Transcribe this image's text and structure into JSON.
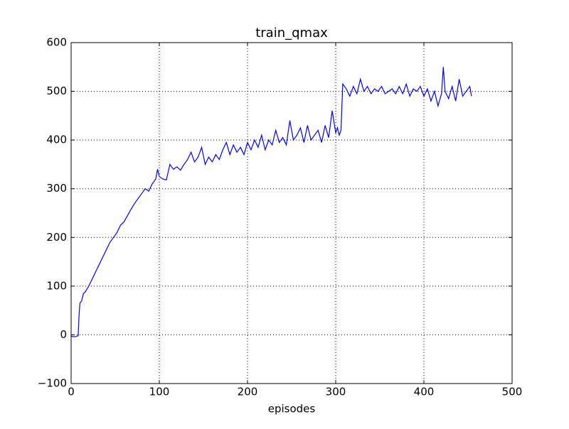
{
  "chart_data": {
    "type": "line",
    "title": "train_qmax",
    "xlabel": "episodes",
    "x": [
      0,
      4,
      8,
      9,
      10,
      12,
      14,
      16,
      20,
      24,
      28,
      32,
      36,
      40,
      44,
      48,
      52,
      56,
      60,
      64,
      68,
      72,
      76,
      80,
      84,
      88,
      92,
      96,
      98,
      100,
      104,
      108,
      112,
      116,
      120,
      124,
      128,
      132,
      136,
      140,
      144,
      148,
      152,
      156,
      160,
      164,
      168,
      172,
      176,
      180,
      184,
      188,
      192,
      196,
      200,
      204,
      208,
      212,
      216,
      220,
      224,
      228,
      232,
      236,
      240,
      244,
      248,
      252,
      256,
      260,
      264,
      268,
      272,
      276,
      280,
      284,
      288,
      292,
      296,
      300,
      302,
      304,
      306,
      308,
      312,
      316,
      320,
      324,
      328,
      332,
      336,
      340,
      344,
      348,
      352,
      356,
      360,
      364,
      368,
      372,
      376,
      380,
      384,
      388,
      392,
      396,
      400,
      404,
      408,
      412,
      416,
      420,
      422,
      424,
      428,
      432,
      436,
      440,
      444,
      448,
      452,
      454
    ],
    "series": [
      {
        "name": "train_qmax",
        "color": "#0000ff",
        "values": [
          -3,
          -4,
          -2,
          40,
          65,
          70,
          85,
          88,
          100,
          115,
          130,
          145,
          160,
          175,
          190,
          200,
          210,
          225,
          232,
          245,
          258,
          270,
          280,
          290,
          300,
          295,
          310,
          320,
          340,
          325,
          320,
          318,
          350,
          340,
          345,
          338,
          350,
          360,
          375,
          355,
          365,
          385,
          350,
          365,
          355,
          370,
          360,
          380,
          395,
          370,
          390,
          375,
          385,
          370,
          395,
          380,
          400,
          385,
          410,
          380,
          400,
          390,
          420,
          395,
          405,
          390,
          440,
          400,
          410,
          425,
          395,
          430,
          400,
          410,
          420,
          395,
          430,
          405,
          460,
          415,
          425,
          410,
          420,
          515,
          505,
          490,
          510,
          495,
          525,
          500,
          510,
          495,
          505,
          500,
          510,
          495,
          500,
          505,
          495,
          510,
          495,
          515,
          490,
          505,
          500,
          510,
          490,
          505,
          480,
          500,
          470,
          495,
          550,
          500,
          485,
          510,
          480,
          525,
          490,
          500,
          510,
          490
        ]
      }
    ],
    "xlim": [
      0,
      500
    ],
    "xticks": [
      0,
      100,
      200,
      300,
      400,
      500
    ],
    "ylim": [
      -100,
      600
    ],
    "yticks": [
      {
        "value": -100,
        "label": "−100"
      },
      0,
      100,
      200,
      300,
      400,
      500,
      600
    ],
    "grid": true
  }
}
